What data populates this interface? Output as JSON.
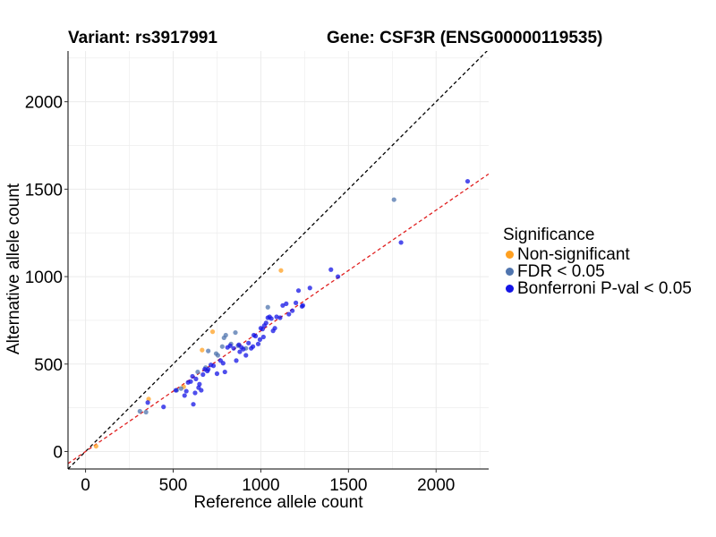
{
  "header": {
    "variant": "Variant: rs3917991",
    "gene": "Gene: CSF3R (ENSG00000119535)"
  },
  "legend": {
    "title": "Significance",
    "items": [
      {
        "label": "Non-significant",
        "color": "#FFA021"
      },
      {
        "label": "FDR < 0.05",
        "color": "#4F74AE"
      },
      {
        "label": "Bonferroni P-val < 0.05",
        "color": "#1414E6"
      }
    ]
  },
  "chart_data": {
    "type": "scatter",
    "xlabel": "Reference allele count",
    "ylabel": "Alternative allele count",
    "xlim": [
      -100,
      2300
    ],
    "ylim": [
      -100,
      2290
    ],
    "xticks": [
      0,
      500,
      1000,
      1500,
      2000
    ],
    "yticks": [
      0,
      500,
      1000,
      1500,
      2000
    ],
    "grid": true,
    "reference_lines": [
      {
        "kind": "identity",
        "slope": 1,
        "intercept": 0,
        "color": "#000000",
        "dash": true
      },
      {
        "kind": "fit",
        "slope": 0.69,
        "intercept": 0,
        "color": "#E02020",
        "dash": true
      }
    ],
    "series": [
      {
        "name": "Non-significant",
        "color": "#FFA021",
        "points": [
          [
            60,
            30
          ],
          [
            360,
            300
          ],
          [
            665,
            580
          ],
          [
            725,
            685
          ],
          [
            1115,
            1035
          ],
          [
            560,
            370
          ]
        ]
      },
      {
        "name": "FDR < 0.05",
        "color": "#4F74AE",
        "points": [
          [
            310,
            230
          ],
          [
            345,
            225
          ],
          [
            520,
            350
          ],
          [
            545,
            360
          ],
          [
            640,
            455
          ],
          [
            685,
            480
          ],
          [
            700,
            575
          ],
          [
            745,
            560
          ],
          [
            755,
            550
          ],
          [
            780,
            600
          ],
          [
            790,
            650
          ],
          [
            800,
            665
          ],
          [
            830,
            615
          ],
          [
            855,
            680
          ],
          [
            870,
            605
          ],
          [
            915,
            590
          ],
          [
            1040,
            825
          ],
          [
            1760,
            1440
          ]
        ]
      },
      {
        "name": "Bonferroni P-val < 0.05",
        "color": "#1414E6",
        "points": [
          [
            355,
            280
          ],
          [
            445,
            255
          ],
          [
            515,
            350
          ],
          [
            565,
            320
          ],
          [
            575,
            345
          ],
          [
            585,
            395
          ],
          [
            600,
            400
          ],
          [
            610,
            430
          ],
          [
            615,
            270
          ],
          [
            625,
            335
          ],
          [
            630,
            415
          ],
          [
            645,
            365
          ],
          [
            650,
            385
          ],
          [
            660,
            350
          ],
          [
            670,
            440
          ],
          [
            680,
            470
          ],
          [
            695,
            460
          ],
          [
            700,
            470
          ],
          [
            715,
            495
          ],
          [
            730,
            490
          ],
          [
            750,
            445
          ],
          [
            770,
            520
          ],
          [
            785,
            505
          ],
          [
            795,
            455
          ],
          [
            810,
            595
          ],
          [
            825,
            605
          ],
          [
            845,
            590
          ],
          [
            860,
            520
          ],
          [
            875,
            610
          ],
          [
            880,
            570
          ],
          [
            890,
            595
          ],
          [
            900,
            585
          ],
          [
            915,
            550
          ],
          [
            930,
            620
          ],
          [
            945,
            590
          ],
          [
            955,
            600
          ],
          [
            960,
            665
          ],
          [
            970,
            660
          ],
          [
            985,
            615
          ],
          [
            995,
            640
          ],
          [
            1000,
            705
          ],
          [
            1010,
            700
          ],
          [
            1015,
            655
          ],
          [
            1020,
            720
          ],
          [
            1030,
            735
          ],
          [
            1040,
            765
          ],
          [
            1050,
            770
          ],
          [
            1060,
            760
          ],
          [
            1070,
            690
          ],
          [
            1080,
            705
          ],
          [
            1090,
            770
          ],
          [
            1110,
            765
          ],
          [
            1125,
            835
          ],
          [
            1145,
            845
          ],
          [
            1160,
            785
          ],
          [
            1180,
            805
          ],
          [
            1200,
            850
          ],
          [
            1215,
            920
          ],
          [
            1235,
            830
          ],
          [
            1240,
            835
          ],
          [
            1280,
            935
          ],
          [
            1400,
            1040
          ],
          [
            1440,
            1000
          ],
          [
            1800,
            1195
          ],
          [
            2180,
            1545
          ]
        ]
      }
    ]
  }
}
